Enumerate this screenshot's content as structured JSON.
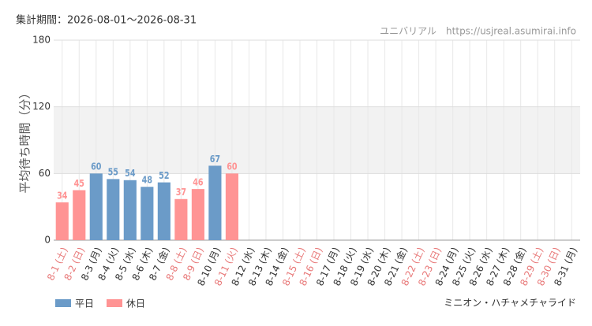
{
  "header": "集計期間：2026-08-01～2026-08-31",
  "site": "ユニバリアル　https://usjreal.asumirai.info",
  "footer": "ミニオン・ハチャメチャライド",
  "chart_data": {
    "type": "bar",
    "y_label": "平均待ち時間（分）",
    "categories": [
      "8-1 (土)",
      "8-2 (日)",
      "8-3 (月)",
      "8-4 (火)",
      "8-5 (水)",
      "8-6 (木)",
      "8-7 (金)",
      "8-8 (土)",
      "8-9 (日)",
      "8-10 (月)",
      "8-11 (火)",
      "8-12 (水)",
      "8-13 (木)",
      "8-14 (金)",
      "8-15 (土)",
      "8-16 (日)",
      "8-17 (月)",
      "8-18 (火)",
      "8-19 (水)",
      "8-20 (木)",
      "8-21 (金)",
      "8-22 (土)",
      "8-23 (日)",
      "8-24 (月)",
      "8-25 (火)",
      "8-26 (水)",
      "8-27 (木)",
      "8-28 (金)",
      "8-29 (土)",
      "8-30 (日)",
      "8-31 (月)"
    ],
    "category_colors": [
      "#e87878",
      "#e87878",
      "#333333",
      "#333333",
      "#333333",
      "#333333",
      "#333333",
      "#e87878",
      "#e87878",
      "#333333",
      "#e87878",
      "#333333",
      "#333333",
      "#333333",
      "#e87878",
      "#e87878",
      "#333333",
      "#333333",
      "#333333",
      "#333333",
      "#333333",
      "#e87878",
      "#e87878",
      "#333333",
      "#333333",
      "#333333",
      "#333333",
      "#333333",
      "#e87878",
      "#e87878",
      "#333333"
    ],
    "series": [
      {
        "name": "平日",
        "color": "#6b9bc8",
        "values": [
          null,
          null,
          60,
          55,
          54,
          48,
          52,
          null,
          null,
          67,
          null,
          null,
          null,
          null,
          null,
          null,
          null,
          null,
          null,
          null,
          null,
          null,
          null,
          null,
          null,
          null,
          null,
          null,
          null,
          null,
          null
        ]
      },
      {
        "name": "休日",
        "color": "#ff9494",
        "values": [
          34,
          45,
          null,
          null,
          null,
          null,
          null,
          37,
          46,
          null,
          60,
          null,
          null,
          null,
          null,
          null,
          null,
          null,
          null,
          null,
          null,
          null,
          null,
          null,
          null,
          null,
          null,
          null,
          null,
          null,
          null
        ]
      }
    ],
    "ylim": [
      0,
      180
    ],
    "yticks": [
      0,
      60,
      120,
      180
    ],
    "grid": true
  }
}
